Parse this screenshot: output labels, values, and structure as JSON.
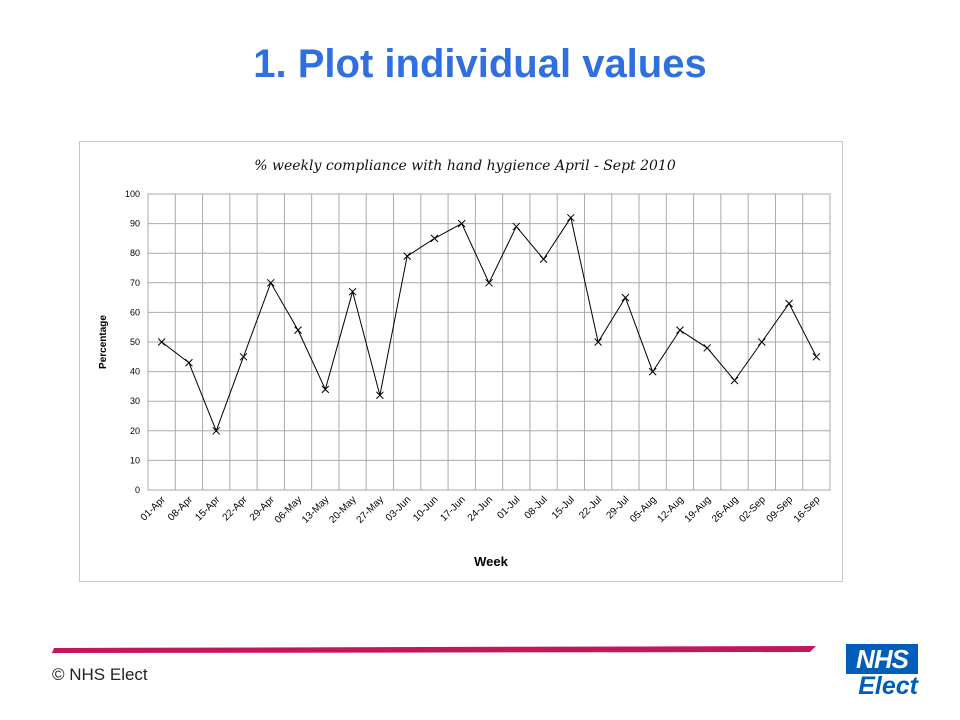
{
  "slide": {
    "title": "1. Plot individual values",
    "copyright": "© NHS Elect",
    "logo_top": "NHS",
    "logo_bottom": "Elect"
  },
  "colors": {
    "title": "#2f6fe0",
    "brand": "#005eb8",
    "band": "#c2185b",
    "band_light": "#e8a2c4",
    "line": "#000000",
    "grid": "#aaaaaa"
  },
  "chart_data": {
    "type": "line",
    "title": "% weekly compliance with hand hygience April - Sept 2010",
    "xlabel": "Week",
    "ylabel": "Percentage",
    "ylim": [
      0,
      100
    ],
    "yticks": [
      0,
      10,
      20,
      30,
      40,
      50,
      60,
      70,
      80,
      90,
      100
    ],
    "grid": true,
    "marker": "x",
    "categories": [
      "01-Apr",
      "08-Apr",
      "15-Apr",
      "22-Apr",
      "29-Apr",
      "06-May",
      "13-May",
      "20-May",
      "27-May",
      "03-Jun",
      "10-Jun",
      "17-Jun",
      "24-Jun",
      "01-Jul",
      "08-Jul",
      "15-Jul",
      "22-Jul",
      "29-Jul",
      "05-Aug",
      "12-Aug",
      "19-Aug",
      "26-Aug",
      "02-Sep",
      "09-Sep",
      "16-Sep"
    ],
    "values": [
      50,
      43,
      20,
      45,
      70,
      54,
      34,
      67,
      32,
      79,
      85,
      90,
      70,
      89,
      78,
      92,
      50,
      65,
      40,
      54,
      48,
      37,
      50,
      63,
      45
    ]
  }
}
